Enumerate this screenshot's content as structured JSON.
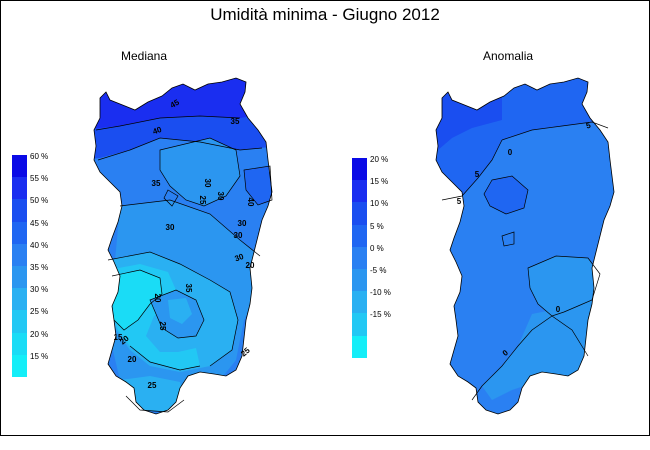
{
  "title": "Umidità minima - Giugno 2012",
  "panels": {
    "mediana": {
      "title": "Mediana",
      "legend": [
        {
          "label": "60 %",
          "color": "#0a0ae6"
        },
        {
          "label": "55 %",
          "color": "#1a2ef0"
        },
        {
          "label": "50 %",
          "color": "#1a4ef0"
        },
        {
          "label": "45 %",
          "color": "#1f66f2"
        },
        {
          "label": "40 %",
          "color": "#2a80f2"
        },
        {
          "label": "35 %",
          "color": "#2b96f0"
        },
        {
          "label": "30 %",
          "color": "#2ab0f2"
        },
        {
          "label": "25 %",
          "color": "#22c8f4"
        },
        {
          "label": "20 %",
          "color": "#1adcf6"
        },
        {
          "label": "15 %",
          "color": "#14eef8"
        }
      ],
      "contour_labels": [
        "45",
        "40",
        "35",
        "30",
        "25",
        "40",
        "35",
        "30",
        "30",
        "30",
        "30",
        "20",
        "20",
        "35",
        "25",
        "20",
        "15",
        "20",
        "25",
        "25",
        "30"
      ]
    },
    "anomalia": {
      "title": "Anomalia",
      "legend": [
        {
          "label": "20 %",
          "color": "#0a0ae6"
        },
        {
          "label": "15 %",
          "color": "#1a2ef0"
        },
        {
          "label": "10 %",
          "color": "#1a4ef0"
        },
        {
          "label": "5 %",
          "color": "#1f66f2"
        },
        {
          "label": "0 %",
          "color": "#2a80f2"
        },
        {
          "label": "-5 %",
          "color": "#2b96f0"
        },
        {
          "label": "-10 %",
          "color": "#2ab0f2"
        },
        {
          "label": "-15 %",
          "color": "#22c8f4"
        },
        {
          "label": "",
          "color": "#14eef8"
        }
      ],
      "contour_labels": [
        "5",
        "0",
        "5",
        "5",
        "0",
        "0"
      ]
    }
  }
}
